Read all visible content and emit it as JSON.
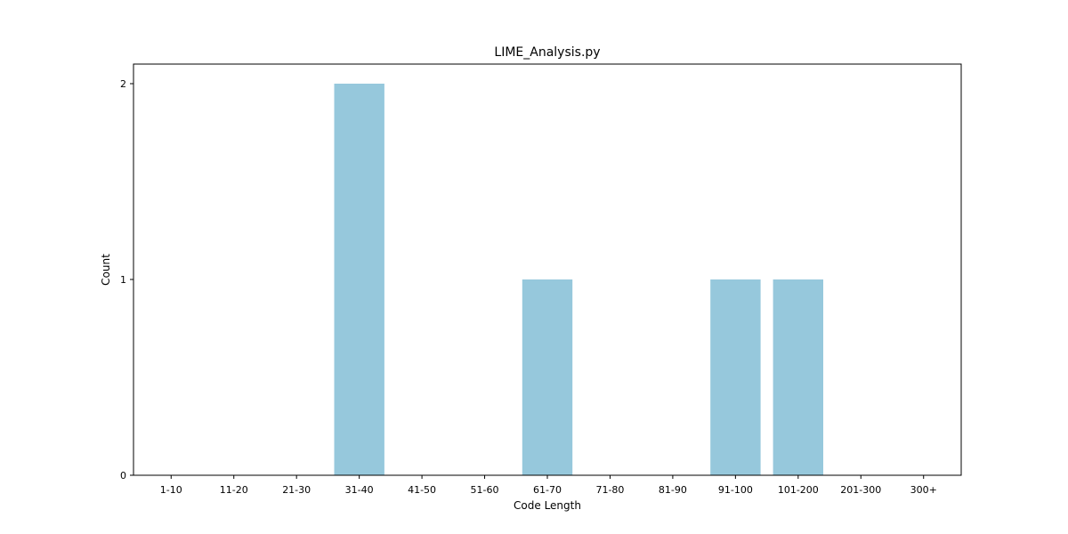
{
  "chart_data": {
    "type": "bar",
    "title": "LIME_Analysis.py",
    "xlabel": "Code Length",
    "ylabel": "Count",
    "categories": [
      "1-10",
      "11-20",
      "21-30",
      "31-40",
      "41-50",
      "51-60",
      "61-70",
      "71-80",
      "81-90",
      "91-100",
      "101-200",
      "201-300",
      "300+"
    ],
    "values": [
      0,
      0,
      0,
      2,
      0,
      0,
      1,
      0,
      0,
      1,
      1,
      0,
      0
    ],
    "ylim": [
      0,
      2.1
    ],
    "yticks": [
      0,
      1,
      2
    ],
    "bar_color": "#96c8dc",
    "grid": false,
    "legend": false
  }
}
